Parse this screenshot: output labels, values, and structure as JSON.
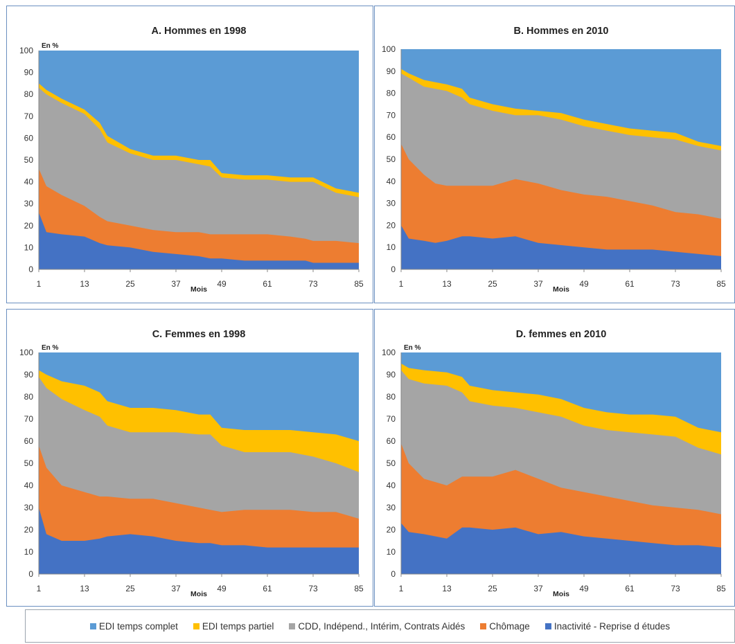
{
  "chart_data": [
    {
      "type": "area",
      "title": "A. Hommes en 1998",
      "ylabel": "En %",
      "xlabel": "Mois",
      "x_ticks": [
        1,
        13,
        25,
        37,
        49,
        61,
        73,
        85
      ],
      "y_ticks": [
        0,
        10,
        20,
        30,
        40,
        50,
        60,
        70,
        80,
        90,
        100
      ],
      "xlim": [
        1,
        85
      ],
      "ylim": [
        0,
        100
      ],
      "x": [
        1,
        3,
        7,
        13,
        17,
        19,
        25,
        31,
        37,
        43,
        46,
        49,
        55,
        61,
        67,
        71,
        73,
        79,
        85
      ],
      "series": [
        {
          "name": "Inactivité - Reprise d études",
          "values": [
            26,
            17,
            16,
            15,
            12,
            11,
            10,
            8,
            7,
            6,
            5,
            5,
            4,
            4,
            4,
            4,
            3,
            3,
            3
          ]
        },
        {
          "name": "Chômage",
          "values": [
            46,
            38,
            34,
            29,
            24,
            22,
            20,
            18,
            17,
            17,
            16,
            16,
            16,
            16,
            15,
            14,
            13,
            13,
            12
          ]
        },
        {
          "name": "CDD, Indépend., Intérim, Contrats Aidés",
          "values": [
            83,
            80,
            76,
            71,
            64,
            58,
            53,
            50,
            50,
            48,
            47,
            42,
            41,
            41,
            40,
            40,
            40,
            35,
            33
          ]
        },
        {
          "name": "EDI temps partiel",
          "values": [
            85,
            82,
            78,
            73,
            67,
            61,
            55,
            52,
            52,
            50,
            50,
            44,
            43,
            43,
            42,
            42,
            42,
            37,
            35
          ]
        },
        {
          "name": "EDI temps complet",
          "values": [
            100,
            100,
            100,
            100,
            100,
            100,
            100,
            100,
            100,
            100,
            100,
            100,
            100,
            100,
            100,
            100,
            100,
            100,
            100
          ]
        }
      ]
    },
    {
      "type": "area",
      "title": "B. Hommes en 2010",
      "ylabel": "",
      "xlabel": "Mois",
      "x_ticks": [
        1,
        13,
        25,
        37,
        49,
        61,
        73,
        85
      ],
      "y_ticks": [
        0,
        10,
        20,
        30,
        40,
        50,
        60,
        70,
        80,
        90,
        100
      ],
      "xlim": [
        1,
        85
      ],
      "ylim": [
        0,
        100
      ],
      "x": [
        1,
        3,
        7,
        10,
        13,
        17,
        19,
        25,
        31,
        37,
        43,
        49,
        55,
        61,
        67,
        73,
        79,
        85
      ],
      "series": [
        {
          "name": "Inactivité - Reprise d études",
          "values": [
            20,
            14,
            13,
            12,
            13,
            15,
            15,
            14,
            15,
            12,
            11,
            10,
            9,
            9,
            9,
            8,
            7,
            6
          ]
        },
        {
          "name": "Chômage",
          "values": [
            57,
            50,
            43,
            39,
            38,
            38,
            38,
            38,
            41,
            39,
            36,
            34,
            33,
            31,
            29,
            26,
            25,
            23
          ]
        },
        {
          "name": "CDD, Indépend., Intérim, Contrats Aidés",
          "values": [
            89,
            87,
            83,
            82,
            81,
            78,
            75,
            72,
            70,
            70,
            68,
            65,
            63,
            61,
            60,
            59,
            56,
            54
          ]
        },
        {
          "name": "EDI temps partiel",
          "values": [
            91,
            89,
            86,
            85,
            84,
            82,
            78,
            75,
            73,
            72,
            71,
            68,
            66,
            64,
            63,
            62,
            58,
            56
          ]
        },
        {
          "name": "EDI temps complet",
          "values": [
            100,
            100,
            100,
            100,
            100,
            100,
            100,
            100,
            100,
            100,
            100,
            100,
            100,
            100,
            100,
            100,
            100,
            100
          ]
        }
      ]
    },
    {
      "type": "area",
      "title": "C. Femmes en 1998",
      "ylabel": "En %",
      "xlabel": "Mois",
      "x_ticks": [
        1,
        13,
        25,
        37,
        49,
        61,
        73,
        85
      ],
      "y_ticks": [
        0,
        10,
        20,
        30,
        40,
        50,
        60,
        70,
        80,
        90,
        100
      ],
      "xlim": [
        1,
        85
      ],
      "ylim": [
        0,
        100
      ],
      "x": [
        1,
        3,
        7,
        13,
        17,
        19,
        25,
        31,
        37,
        43,
        46,
        49,
        55,
        61,
        67,
        73,
        79,
        85
      ],
      "series": [
        {
          "name": "Inactivité - Reprise d études",
          "values": [
            30,
            18,
            15,
            15,
            16,
            17,
            18,
            17,
            15,
            14,
            14,
            13,
            13,
            12,
            12,
            12,
            12,
            12
          ]
        },
        {
          "name": "Chômage",
          "values": [
            58,
            48,
            40,
            37,
            35,
            35,
            34,
            34,
            32,
            30,
            29,
            28,
            29,
            29,
            29,
            28,
            28,
            25
          ]
        },
        {
          "name": "CDD, Indépend., Intérim, Contrats Aidés",
          "values": [
            89,
            84,
            79,
            74,
            71,
            67,
            64,
            64,
            64,
            63,
            63,
            58,
            55,
            55,
            55,
            53,
            50,
            46
          ]
        },
        {
          "name": "EDI temps partiel",
          "values": [
            92,
            90,
            87,
            85,
            82,
            78,
            75,
            75,
            74,
            72,
            72,
            66,
            65,
            65,
            65,
            64,
            63,
            60
          ]
        },
        {
          "name": "EDI temps complet",
          "values": [
            100,
            100,
            100,
            100,
            100,
            100,
            100,
            100,
            100,
            100,
            100,
            100,
            100,
            100,
            100,
            100,
            100,
            100
          ]
        }
      ]
    },
    {
      "type": "area",
      "title": "D. femmes en 2010",
      "ylabel": "En %",
      "xlabel": "Mois",
      "x_ticks": [
        1,
        13,
        25,
        37,
        49,
        61,
        73,
        85
      ],
      "y_ticks": [
        0,
        10,
        20,
        30,
        40,
        50,
        60,
        70,
        80,
        90,
        100
      ],
      "xlim": [
        1,
        85
      ],
      "ylim": [
        0,
        100
      ],
      "x": [
        1,
        3,
        7,
        13,
        17,
        19,
        25,
        31,
        37,
        43,
        49,
        55,
        61,
        67,
        73,
        79,
        85
      ],
      "series": [
        {
          "name": "Inactivité - Reprise d études",
          "values": [
            23,
            19,
            18,
            16,
            21,
            21,
            20,
            21,
            18,
            19,
            17,
            16,
            15,
            14,
            13,
            13,
            12
          ]
        },
        {
          "name": "Chômage",
          "values": [
            59,
            50,
            43,
            40,
            44,
            44,
            44,
            47,
            43,
            39,
            37,
            35,
            33,
            31,
            30,
            29,
            27
          ]
        },
        {
          "name": "CDD, Indépend., Intérim, Contrats Aidés",
          "values": [
            92,
            88,
            86,
            85,
            82,
            78,
            76,
            75,
            73,
            71,
            67,
            65,
            64,
            63,
            62,
            57,
            54
          ]
        },
        {
          "name": "EDI temps partiel",
          "values": [
            95,
            93,
            92,
            91,
            89,
            85,
            83,
            82,
            81,
            79,
            75,
            73,
            72,
            72,
            71,
            66,
            64
          ]
        },
        {
          "name": "EDI temps complet",
          "values": [
            100,
            100,
            100,
            100,
            100,
            100,
            100,
            100,
            100,
            100,
            100,
            100,
            100,
            100,
            100,
            100,
            100
          ]
        }
      ]
    }
  ],
  "colors": {
    "EDI temps complet": "#5b9bd5",
    "EDI temps partiel": "#ffc000",
    "CDD, Indépend., Intérim, Contrats Aidés": "#a5a5a5",
    "Chômage": "#ed7d31",
    "Inactivité - Reprise d études": "#4472c4"
  },
  "legend": {
    "items": [
      "EDI temps complet",
      "EDI temps partiel",
      "CDD, Indépend., Intérim, Contrats Aidés",
      "Chômage",
      "Inactivité - Reprise d études"
    ]
  }
}
